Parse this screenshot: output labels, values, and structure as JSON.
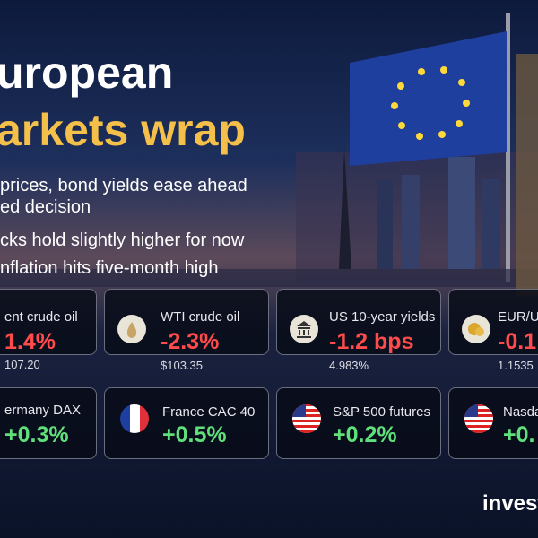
{
  "title": {
    "line1": "uropean",
    "line2": "arkets wrap"
  },
  "bullets": [
    "prices, bond yields ease ahead",
    "ed decision",
    "cks hold slightly higher for now",
    "nflation hits five-month high"
  ],
  "cards": [
    {
      "label": "ent crude oil",
      "change": "1.4%",
      "price": "107.20"
    },
    {
      "label": "WTI crude oil",
      "change": "-2.3%",
      "price": "$103.35"
    },
    {
      "label": "US 10-year yields",
      "change": "-1.2 bps",
      "price": "4.983%"
    },
    {
      "label": "EUR/U",
      "change": "-0.1",
      "price": "1.1535"
    },
    {
      "label": "ermany DAX",
      "change": "+0.3%"
    },
    {
      "label": "France CAC 40",
      "change": "+0.5%"
    },
    {
      "label": "S&P 500 futures",
      "change": "+0.2%"
    },
    {
      "label": "Nasda",
      "change": "+0."
    }
  ],
  "footer": {
    "brand": "invest"
  }
}
